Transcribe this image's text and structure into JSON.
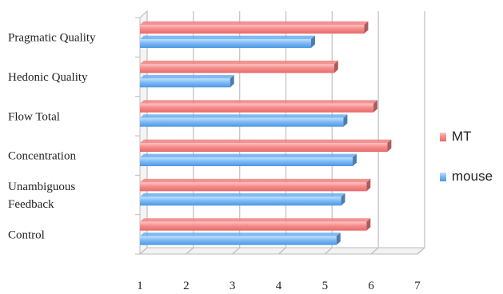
{
  "chart_data": {
    "type": "bar",
    "orientation": "horizontal",
    "style": "3d",
    "categories": [
      "Pragmatic Quality",
      "Hedonic Quality",
      "Flow Total",
      "Concentration",
      "Unambiguous Feedback",
      "Control"
    ],
    "category_label_lines": [
      [
        "Pragmatic Quality"
      ],
      [
        "Hedonic Quality"
      ],
      [
        "Flow Total"
      ],
      [
        "Concentration"
      ],
      [
        "Unambiguous",
        "Feedback"
      ],
      [
        "Control"
      ]
    ],
    "series": [
      {
        "name": "MT",
        "color": "#f08080",
        "values": [
          5.85,
          5.2,
          6.05,
          6.35,
          5.9,
          5.9
        ]
      },
      {
        "name": "mouse",
        "color": "#6aaef0",
        "values": [
          4.7,
          2.95,
          5.4,
          5.6,
          5.35,
          5.25
        ]
      }
    ],
    "x_ticks": [
      1,
      2,
      3,
      4,
      5,
      6,
      7
    ],
    "xlim": [
      1,
      7
    ],
    "grid": true,
    "legend_position": "right",
    "title": "",
    "xlabel": "",
    "ylabel": ""
  }
}
